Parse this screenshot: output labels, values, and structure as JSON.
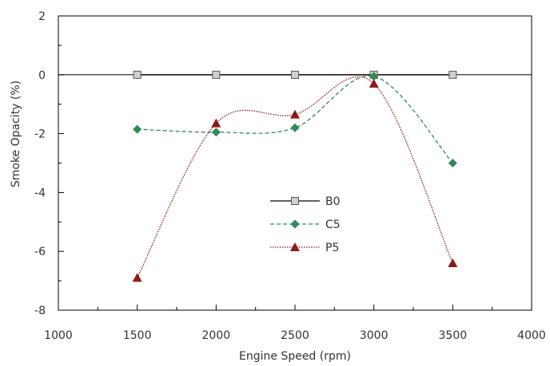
{
  "chart_data": {
    "type": "line",
    "xlabel": "Engine Speed (rpm)",
    "ylabel": "Smoke Opacity (%)",
    "xlim": [
      1000,
      4000
    ],
    "ylim": [
      -8,
      2
    ],
    "xticks": [
      1000,
      1500,
      2000,
      2500,
      3000,
      3500,
      4000
    ],
    "yticks": [
      -8,
      -6,
      -4,
      -2,
      0,
      2
    ],
    "x_minor_step": 250,
    "y_minor_step": 1,
    "grid": false,
    "legend_position": "center",
    "series": [
      {
        "name": "B0",
        "x": [
          1500,
          2000,
          2500,
          3000,
          3500
        ],
        "y": [
          0,
          0,
          0,
          0,
          0
        ],
        "color": "#000000",
        "marker": "square",
        "marker_fill": "#d0d0d0",
        "line_style": "solid",
        "smooth": false
      },
      {
        "name": "C5",
        "x": [
          1500,
          2000,
          2500,
          3000,
          3500
        ],
        "y": [
          -1.85,
          -1.95,
          -1.8,
          -0.05,
          -3.0
        ],
        "color": "#2e8b57",
        "marker": "diamond",
        "marker_fill": "#2e8b57",
        "line_style": "dashed",
        "smooth": true
      },
      {
        "name": "P5",
        "x": [
          1500,
          2000,
          2500,
          3000,
          3500
        ],
        "y": [
          -6.9,
          -1.65,
          -1.35,
          -0.3,
          -6.4
        ],
        "color": "#8b1a1a",
        "marker": "triangle",
        "marker_fill": "#8b1a1a",
        "line_style": "dotted",
        "smooth": true
      }
    ]
  }
}
